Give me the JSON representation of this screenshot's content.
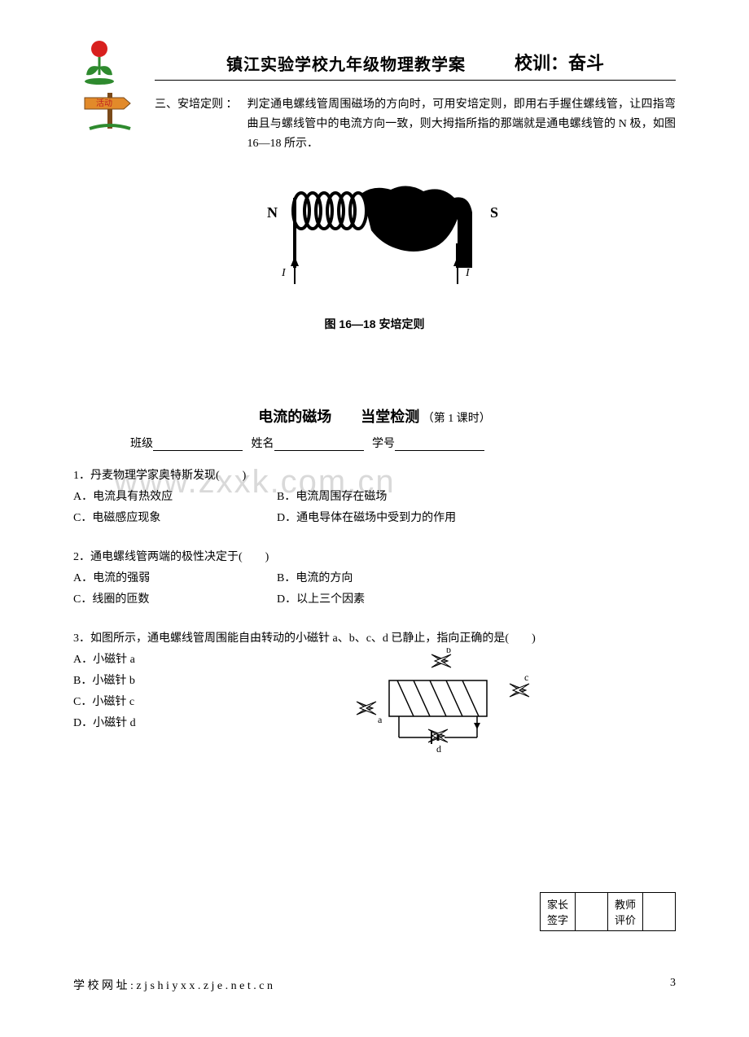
{
  "header": {
    "title": "镇江实验学校九年级物理教学案",
    "motto": "校训：奋斗"
  },
  "section3": {
    "label": "三、安培定则 ：",
    "body": "判定通电螺线管周围磁场的方向时，可用安培定则，即用右手握住螺线管，让四指弯曲且与螺线管中的电流方向一致，则大拇指所指的那端就是通电螺线管的 N 极，如图 16—18 所示．"
  },
  "figure": {
    "left_label": "N",
    "right_label": "S",
    "current_label_left": "I",
    "current_label_right": "I",
    "caption": "图 16—18  安培定则"
  },
  "quiz": {
    "title_main": "电流的磁场　　当堂检测",
    "title_sub": "（第 1 课时）",
    "labels": {
      "class": "班级",
      "name": "姓名",
      "id": "学号"
    }
  },
  "watermark": "www.zxxk.com.cn",
  "q1": {
    "stem": "1．丹麦物理学家奥特斯发现(　　)",
    "a": "A．电流具有热效应",
    "b": "B．电流周围存在磁场",
    "c": "C．电磁感应现象",
    "d": "D．通电导体在磁场中受到力的作用"
  },
  "q2": {
    "stem": "2．通电螺线管两端的极性决定于(　　)",
    "a": "A．电流的强弱",
    "b": "B．电流的方向",
    "c": "C．线圈的匝数",
    "d": "D．以上三个因素"
  },
  "q3": {
    "stem": "3．如图所示，通电螺线管周围能自由转动的小磁针 a、b、c、d 已静止，指向正确的是(　　)",
    "a": "A．小磁针 a",
    "b": "B．小磁针 b",
    "c": "C．小磁针 c",
    "d": "D．小磁针 d",
    "fig_labels": {
      "a": "a",
      "b": "b",
      "c": "c",
      "d": "d"
    }
  },
  "sign": {
    "parent": "家长签字",
    "teacher": "教师评价"
  },
  "footer": {
    "url": "学 校 网 址 : z j s h i y x x . z j e . n e t . c n",
    "page": "3"
  },
  "colors": {
    "text": "#000000",
    "watermark": "#d9d9d9",
    "flower_red": "#d8201e",
    "flower_green": "#2e8a2e",
    "sign_orange": "#e28a2a",
    "sign_text": "#c02020",
    "sign_post": "#7a4a1a"
  }
}
